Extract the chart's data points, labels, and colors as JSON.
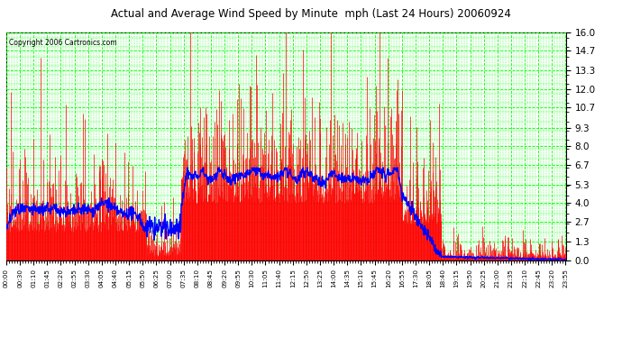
{
  "title": "Actual and Average Wind Speed by Minute  mph (Last 24 Hours) 20060924",
  "copyright": "Copyright 2006 Cartronics.com",
  "background_color": "#ffffff",
  "plot_bg_color": "#ffffff",
  "grid_color": "#00ff00",
  "bar_color": "#ff0000",
  "line_color": "#0000ff",
  "yticks": [
    0.0,
    1.3,
    2.7,
    4.0,
    5.3,
    6.7,
    8.0,
    9.3,
    10.7,
    12.0,
    13.3,
    14.7,
    16.0
  ],
  "ylim": [
    0,
    16.0
  ],
  "xtick_labels": [
    "00:00",
    "00:30",
    "01:10",
    "01:45",
    "02:20",
    "02:55",
    "03:30",
    "04:05",
    "04:40",
    "05:15",
    "05:50",
    "06:25",
    "07:00",
    "07:35",
    "08:10",
    "08:45",
    "09:20",
    "09:55",
    "10:30",
    "11:05",
    "11:40",
    "12:15",
    "12:50",
    "13:25",
    "14:00",
    "14:35",
    "15:10",
    "15:45",
    "16:20",
    "16:55",
    "17:30",
    "18:05",
    "18:40",
    "19:15",
    "19:50",
    "20:25",
    "21:00",
    "21:35",
    "22:10",
    "22:45",
    "23:20",
    "23:55"
  ],
  "n_minutes": 1440
}
